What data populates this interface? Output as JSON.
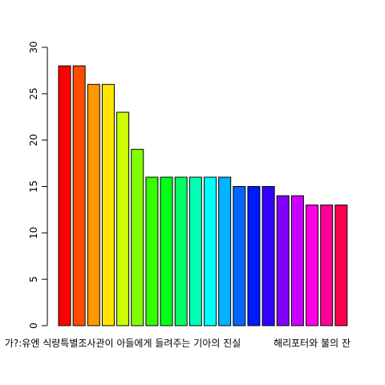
{
  "chart_data": {
    "type": "bar",
    "title": "",
    "xlabel": "",
    "ylabel": "",
    "ylim": [
      0,
      30
    ],
    "yticks": [
      0,
      5,
      10,
      15,
      20,
      25,
      30
    ],
    "grid": false,
    "legend": "none",
    "categories": [
      "",
      "",
      "",
      "",
      "",
      "",
      "",
      "",
      "",
      "",
      "",
      "",
      "",
      "",
      "",
      "",
      "",
      "",
      "",
      ""
    ],
    "visible_x_labels": [
      {
        "index": 4,
        "text": "가?:유엔 식량특별조사관이 아들에게 들려주는 기아의 진실"
      },
      {
        "index": 17,
        "text": "해리포터와 불의 잔"
      }
    ],
    "values": [
      28,
      28,
      26,
      26,
      23,
      19,
      16,
      16,
      16,
      16,
      16,
      16,
      15,
      15,
      15,
      14,
      14,
      13,
      13,
      13
    ],
    "colors": [
      "#FF0000",
      "#FF4D00",
      "#FF9900",
      "#FFE500",
      "#CCFF00",
      "#80FF00",
      "#33FF00",
      "#00FF19",
      "#00FF66",
      "#00FFB2",
      "#00FFFF",
      "#00B3FF",
      "#0066FF",
      "#001AFF",
      "#3300FF",
      "#7F00FF",
      "#CC00FF",
      "#FF00E6",
      "#FF0099",
      "#FF004D"
    ]
  }
}
